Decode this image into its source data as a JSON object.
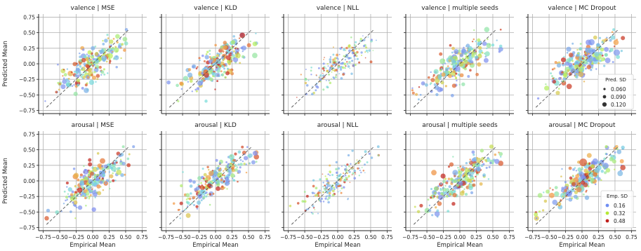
{
  "chart_data": {
    "type": "scatter",
    "panel_titles": [
      [
        "valence | MSE",
        "valence | KLD",
        "valence | NLL",
        "valence | multiple seeds",
        "valence | MC Dropout"
      ],
      [
        "arousal | MSE",
        "arousal | KLD",
        "arousal | NLL",
        "arousal | multiple seeds",
        "arousal | MC Dropout"
      ]
    ],
    "xlabel": "Empirical Mean",
    "ylabel": "Predicted Mean",
    "x_ticks": [
      "−0.75",
      "−0.50",
      "−0.25",
      "0.00",
      "0.25",
      "0.50",
      "0.75"
    ],
    "y_ticks": [
      "−0.75",
      "−0.50",
      "−0.25",
      "0.00",
      "0.25",
      "0.50",
      "0.75"
    ],
    "xlim": [
      -0.82,
      0.82
    ],
    "ylim": [
      -0.8,
      0.8
    ],
    "grid": true,
    "reference_line": {
      "style": "dashed",
      "from": [
        -0.7,
        -0.7
      ],
      "to": [
        0.55,
        0.55
      ]
    },
    "size_legend": {
      "title": "Pred. SD",
      "entries": [
        "0.060",
        "0.090",
        "0.120"
      ],
      "values": [
        0.06,
        0.09,
        0.12
      ],
      "placement": "lower-right of top-right panel"
    },
    "color_legend": {
      "title": "Emp. SD",
      "entries": [
        "0.16",
        "0.32",
        "0.48"
      ],
      "colors": [
        "#6f8df2",
        "#b6e835",
        "#c0201c"
      ],
      "placement": "lower-right of bottom-right panel"
    },
    "colors": {
      "low": "#7f8ef0",
      "mid": "#b9ef57",
      "high": "#c2251d",
      "frame": "#222222",
      "grid": "#b0b0b0",
      "refline": "#555555"
    }
  }
}
